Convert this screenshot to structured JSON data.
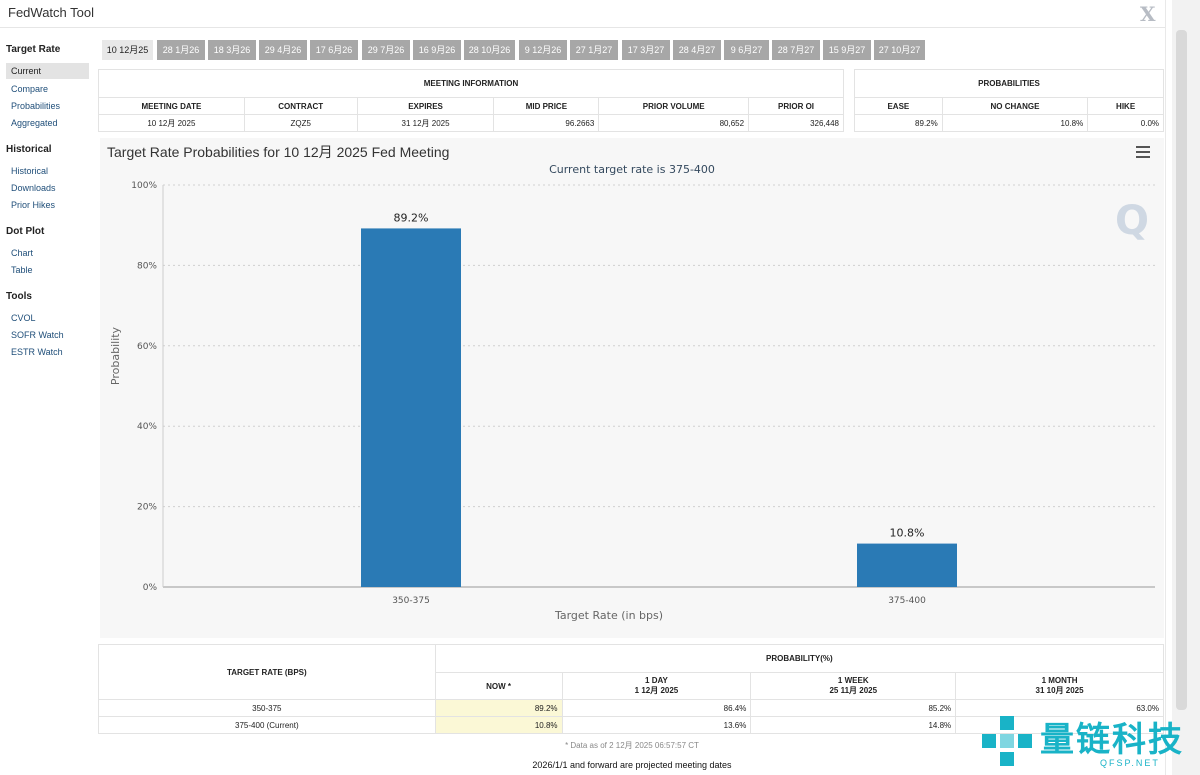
{
  "app": {
    "title": "FedWatch Tool",
    "close_glyph": "X"
  },
  "sidebar": [
    {
      "heading": "Target Rate",
      "items": [
        {
          "label": "Current",
          "active": true
        },
        {
          "label": "Compare"
        },
        {
          "label": "Probabilities"
        },
        {
          "label": "Aggregated"
        }
      ]
    },
    {
      "heading": "Historical",
      "items": [
        {
          "label": "Historical"
        },
        {
          "label": "Downloads"
        },
        {
          "label": "Prior Hikes"
        }
      ]
    },
    {
      "heading": "Dot Plot",
      "items": [
        {
          "label": "Chart"
        },
        {
          "label": "Table"
        }
      ]
    },
    {
      "heading": "Tools",
      "items": [
        {
          "label": "CVOL"
        },
        {
          "label": "SOFR Watch"
        },
        {
          "label": "ESTR Watch"
        }
      ]
    }
  ],
  "date_tabs": [
    "10 12月25",
    "28 1月26",
    "18 3月26",
    "29 4月26",
    "17 6月26",
    "29 7月26",
    "16 9月26",
    "28 10月26",
    "9 12月26",
    "27 1月27",
    "17 3月27",
    "28 4月27",
    "9 6月27",
    "28 7月27",
    "15 9月27",
    "27 10月27"
  ],
  "meeting_info": {
    "title": "MEETING INFORMATION",
    "headers": [
      "MEETING DATE",
      "CONTRACT",
      "EXPIRES",
      "MID PRICE",
      "PRIOR VOLUME",
      "PRIOR OI"
    ],
    "row": [
      "10 12月 2025",
      "ZQZ5",
      "31 12月 2025",
      "96.2663",
      "80,652",
      "326,448"
    ]
  },
  "probabilities": {
    "title": "PROBABILITIES",
    "headers": [
      "EASE",
      "NO CHANGE",
      "HIKE"
    ],
    "row": [
      "89.2%",
      "10.8%",
      "0.0%"
    ]
  },
  "chart": {
    "title": "Target Rate Probabilities for 10 12月 2025 Fed Meeting",
    "subtitle": "Current target rate is 375-400",
    "menu_icon": "hamburger-menu-icon",
    "logo": "Q"
  },
  "chart_data": {
    "type": "bar",
    "categories": [
      "350-375",
      "375-400"
    ],
    "values": [
      89.2,
      10.8
    ],
    "data_labels": [
      "89.2%",
      "10.8%"
    ],
    "xlabel": "Target Rate (in bps)",
    "ylabel": "Probability",
    "ylim": [
      0,
      100
    ],
    "yticks": [
      "0%",
      "20%",
      "40%",
      "60%",
      "80%",
      "100%"
    ],
    "grid": true,
    "bar_color": "#2a7ab5"
  },
  "prob_table": {
    "target_header": "TARGET RATE (BPS)",
    "group_header": "PROBABILITY(%)",
    "columns": [
      {
        "line1": "NOW *",
        "line2": ""
      },
      {
        "line1": "1 DAY",
        "line2": "1 12月 2025"
      },
      {
        "line1": "1 WEEK",
        "line2": "25 11月 2025"
      },
      {
        "line1": "1 MONTH",
        "line2": "31 10月 2025"
      }
    ],
    "rows": [
      {
        "rate": "350-375",
        "values": [
          "89.2%",
          "86.4%",
          "85.2%",
          "63.0%"
        ]
      },
      {
        "rate": "375-400 (Current)",
        "values": [
          "10.8%",
          "13.6%",
          "14.8%",
          ""
        ]
      }
    ]
  },
  "footnote": "* Data as of 2 12月 2025 06:57:57 CT",
  "projected_note": "2026/1/1 and forward are projected meeting dates",
  "watermark": {
    "text": "量链科技",
    "sub": "QFSP.NET"
  },
  "colors": {
    "accent": "#2a7ab5",
    "tab_bg": "#a7a7a7",
    "now_col": "#fbf8d6",
    "watermark": "#19b3c7"
  }
}
